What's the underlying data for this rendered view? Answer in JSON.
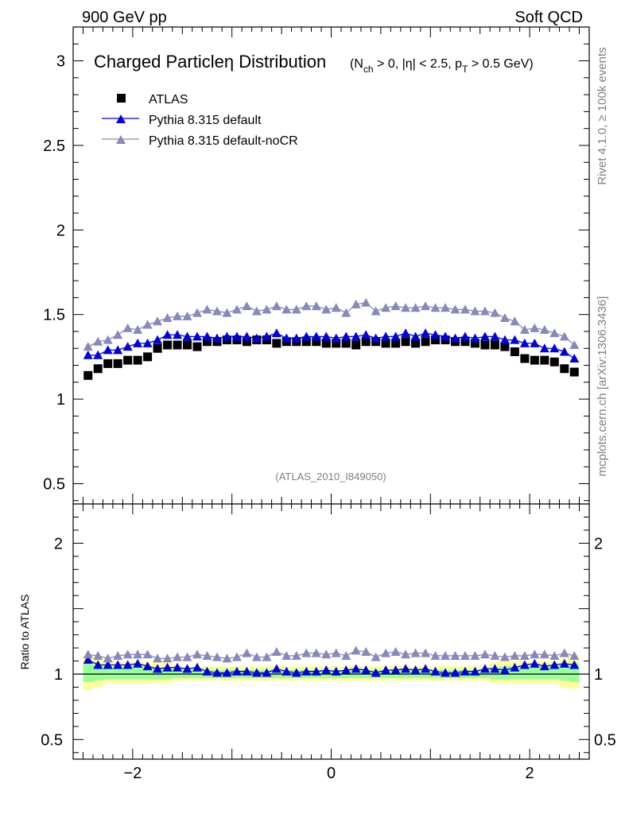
{
  "header": {
    "left": "900 GeV pp",
    "right": "Soft QCD"
  },
  "side_labels": {
    "top": "Rivet 4.1.0, ≥ 100k events",
    "bottom": "mcplots.cern.ch [arXiv:1306.3436]"
  },
  "chart_data": [
    {
      "type": "scatter",
      "title": "Charged Particle",
      "title_eta": "η Distribution",
      "subtitle": "(N_ch > 0, |η| < 2.5, p_T > 0.5 GeV)",
      "subtitle_parts": {
        "open": "(N",
        "sub1": "ch",
        "mid": " > 0, |η| < 2.5, p",
        "sub2": "T",
        "close": " > 0.5 GeV)"
      },
      "watermark": "(ATLAS_2010_I849050)",
      "xlim": [
        -2.6,
        2.6
      ],
      "ylim": [
        0.38,
        3.2
      ],
      "yticks": [
        0.5,
        1,
        1.5,
        2,
        2.5,
        3
      ],
      "ytick_labels": [
        "0.5",
        "1",
        "1.5",
        "2",
        "2.5",
        "3"
      ],
      "x": [
        -2.45,
        -2.35,
        -2.25,
        -2.15,
        -2.05,
        -1.95,
        -1.85,
        -1.75,
        -1.65,
        -1.55,
        -1.45,
        -1.35,
        -1.25,
        -1.15,
        -1.05,
        -0.95,
        -0.85,
        -0.75,
        -0.65,
        -0.55,
        -0.45,
        -0.35,
        -0.25,
        -0.15,
        -0.05,
        0.05,
        0.15,
        0.25,
        0.35,
        0.45,
        0.55,
        0.65,
        0.75,
        0.85,
        0.95,
        1.05,
        1.15,
        1.25,
        1.35,
        1.45,
        1.55,
        1.65,
        1.75,
        1.85,
        1.95,
        2.05,
        2.15,
        2.25,
        2.35,
        2.45
      ],
      "series": [
        {
          "name": "ATLAS",
          "marker": "square",
          "color": "#000000",
          "values": [
            1.14,
            1.18,
            1.21,
            1.21,
            1.23,
            1.23,
            1.25,
            1.3,
            1.32,
            1.32,
            1.32,
            1.31,
            1.34,
            1.34,
            1.35,
            1.35,
            1.34,
            1.35,
            1.35,
            1.33,
            1.34,
            1.34,
            1.34,
            1.34,
            1.33,
            1.33,
            1.33,
            1.32,
            1.34,
            1.34,
            1.33,
            1.33,
            1.34,
            1.33,
            1.34,
            1.35,
            1.35,
            1.34,
            1.34,
            1.33,
            1.32,
            1.32,
            1.31,
            1.28,
            1.24,
            1.23,
            1.23,
            1.22,
            1.18,
            1.16
          ]
        },
        {
          "name": "Pythia 8.315 default",
          "marker": "triangle",
          "color": "#0000dd",
          "line": true,
          "values": [
            1.26,
            1.26,
            1.29,
            1.29,
            1.31,
            1.33,
            1.33,
            1.35,
            1.38,
            1.38,
            1.37,
            1.37,
            1.37,
            1.36,
            1.37,
            1.37,
            1.37,
            1.36,
            1.37,
            1.39,
            1.36,
            1.36,
            1.37,
            1.37,
            1.37,
            1.36,
            1.37,
            1.37,
            1.38,
            1.36,
            1.37,
            1.37,
            1.39,
            1.37,
            1.39,
            1.38,
            1.37,
            1.36,
            1.37,
            1.36,
            1.37,
            1.37,
            1.35,
            1.35,
            1.33,
            1.33,
            1.3,
            1.3,
            1.28,
            1.24
          ]
        },
        {
          "name": "Pythia 8.315 default-noCR",
          "marker": "triangle",
          "color": "#8888bb",
          "line": true,
          "values": [
            1.31,
            1.34,
            1.35,
            1.38,
            1.42,
            1.41,
            1.44,
            1.46,
            1.48,
            1.49,
            1.49,
            1.51,
            1.53,
            1.52,
            1.51,
            1.53,
            1.55,
            1.52,
            1.53,
            1.55,
            1.53,
            1.53,
            1.55,
            1.55,
            1.53,
            1.54,
            1.51,
            1.56,
            1.57,
            1.52,
            1.54,
            1.55,
            1.54,
            1.54,
            1.55,
            1.54,
            1.54,
            1.53,
            1.53,
            1.52,
            1.52,
            1.51,
            1.48,
            1.46,
            1.41,
            1.42,
            1.41,
            1.39,
            1.37,
            1.32
          ]
        }
      ]
    },
    {
      "type": "scatter",
      "ylabel": "Ratio to ATLAS",
      "xlim": [
        -2.6,
        2.6
      ],
      "ylim": [
        0.35,
        2.3
      ],
      "yticks": [
        0.5,
        1,
        2
      ],
      "ytick_labels": [
        "0.5",
        "1",
        "2"
      ],
      "xticks": [
        -2,
        0,
        2
      ],
      "xtick_labels": [
        "−2",
        "0",
        "2"
      ],
      "bands": {
        "x_edges": [
          -2.5,
          -2.4,
          -2.3,
          -1.6,
          -1.5,
          1.6,
          1.7,
          2.3,
          2.4,
          2.5
        ],
        "yellow_lo": [
          0.88,
          0.9,
          0.93,
          0.95,
          0.95,
          0.93,
          0.93,
          0.9,
          0.89
        ],
        "yellow_hi": [
          1.14,
          1.12,
          1.09,
          1.07,
          1.06,
          1.09,
          1.1,
          1.12,
          1.14
        ],
        "green_lo": [
          0.94,
          0.95,
          0.96,
          0.97,
          0.97,
          0.96,
          0.96,
          0.95,
          0.94
        ],
        "green_hi": [
          1.08,
          1.07,
          1.05,
          1.04,
          1.03,
          1.05,
          1.06,
          1.07,
          1.08
        ]
      },
      "series": [
        {
          "name": "Pythia 8.315 default",
          "color": "#0000dd",
          "values": [
            1.11,
            1.07,
            1.07,
            1.07,
            1.07,
            1.08,
            1.06,
            1.04,
            1.05,
            1.05,
            1.04,
            1.05,
            1.02,
            1.01,
            1.01,
            1.02,
            1.02,
            1.01,
            1.01,
            1.04,
            1.02,
            1.01,
            1.02,
            1.02,
            1.03,
            1.02,
            1.03,
            1.04,
            1.03,
            1.01,
            1.03,
            1.03,
            1.04,
            1.03,
            1.04,
            1.02,
            1.01,
            1.01,
            1.02,
            1.02,
            1.04,
            1.04,
            1.03,
            1.05,
            1.07,
            1.08,
            1.06,
            1.07,
            1.08,
            1.07
          ]
        },
        {
          "name": "Pythia 8.315 default-noCR",
          "color": "#8888bb",
          "values": [
            1.15,
            1.14,
            1.12,
            1.14,
            1.15,
            1.15,
            1.15,
            1.12,
            1.12,
            1.13,
            1.13,
            1.15,
            1.14,
            1.13,
            1.12,
            1.13,
            1.16,
            1.13,
            1.13,
            1.17,
            1.14,
            1.14,
            1.16,
            1.16,
            1.15,
            1.16,
            1.14,
            1.18,
            1.17,
            1.13,
            1.16,
            1.17,
            1.15,
            1.16,
            1.16,
            1.14,
            1.14,
            1.14,
            1.14,
            1.14,
            1.15,
            1.14,
            1.13,
            1.14,
            1.14,
            1.15,
            1.15,
            1.14,
            1.16,
            1.14
          ]
        }
      ]
    }
  ]
}
